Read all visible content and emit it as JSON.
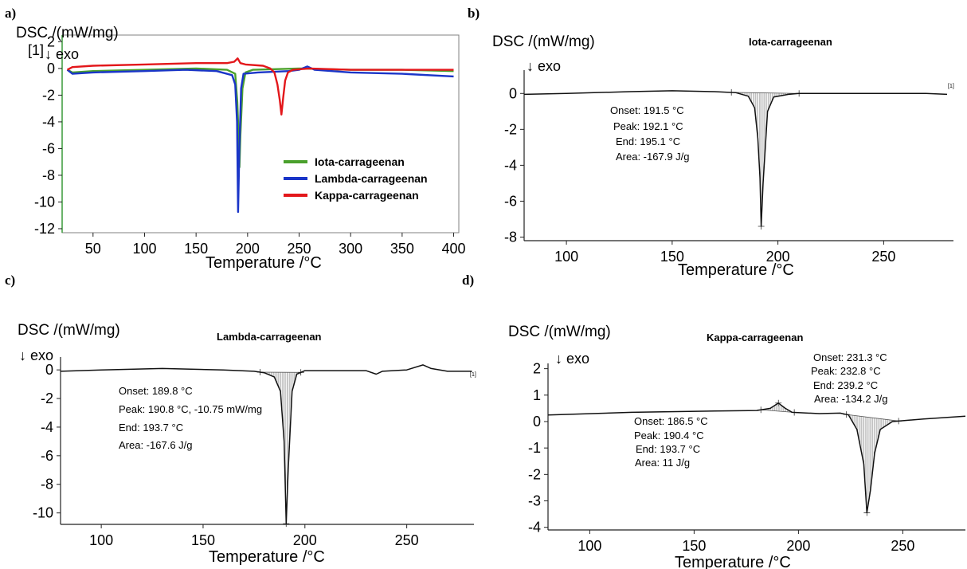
{
  "chart_data": [
    {
      "panel": "a)",
      "type": "line",
      "title": "",
      "ylabel": "DSC /(mW/mg)",
      "exo_label": "↓ exo",
      "marker_label": "[1]",
      "xlabel": "Temperature /°C",
      "xlim": [
        20,
        405
      ],
      "ylim": [
        -12.3,
        2.5
      ],
      "xticks": [
        50,
        100,
        150,
        200,
        250,
        300,
        350,
        400
      ],
      "yticks": [
        2,
        0,
        -2,
        -4,
        -6,
        -8,
        -10,
        -12
      ],
      "legend_position": "center-right",
      "series": [
        {
          "name": "Iota-carrageenan",
          "color": "#4aa02c",
          "points": [
            [
              25,
              -0.1
            ],
            [
              30,
              -0.3
            ],
            [
              50,
              -0.2
            ],
            [
              100,
              -0.1
            ],
            [
              150,
              0.0
            ],
            [
              180,
              -0.1
            ],
            [
              188,
              -0.4
            ],
            [
              190,
              -2.5
            ],
            [
              191.5,
              -5.5
            ],
            [
              192.1,
              -7.4
            ],
            [
              193,
              -5.0
            ],
            [
              195,
              -1.5
            ],
            [
              198,
              -0.3
            ],
            [
              205,
              -0.1
            ],
            [
              250,
              0.0
            ],
            [
              300,
              -0.1
            ],
            [
              350,
              -0.1
            ],
            [
              400,
              -0.2
            ]
          ]
        },
        {
          "name": "Lambda-carrageenan",
          "color": "#1a35c8",
          "points": [
            [
              25,
              -0.1
            ],
            [
              30,
              -0.4
            ],
            [
              50,
              -0.3
            ],
            [
              100,
              -0.2
            ],
            [
              140,
              -0.1
            ],
            [
              170,
              -0.2
            ],
            [
              185,
              -0.5
            ],
            [
              188,
              -1.2
            ],
            [
              189.8,
              -4.0
            ],
            [
              190.8,
              -10.75
            ],
            [
              192,
              -6.0
            ],
            [
              193.7,
              -1.5
            ],
            [
              196,
              -0.4
            ],
            [
              210,
              -0.3
            ],
            [
              240,
              -0.2
            ],
            [
              250,
              -0.1
            ],
            [
              258,
              0.15
            ],
            [
              265,
              -0.1
            ],
            [
              300,
              -0.3
            ],
            [
              350,
              -0.4
            ],
            [
              400,
              -0.6
            ]
          ]
        },
        {
          "name": "Kappa-carrageenan",
          "color": "#e3171b",
          "points": [
            [
              25,
              -0.1
            ],
            [
              30,
              0.1
            ],
            [
              50,
              0.2
            ],
            [
              100,
              0.3
            ],
            [
              150,
              0.4
            ],
            [
              180,
              0.4
            ],
            [
              187,
              0.5
            ],
            [
              190.4,
              0.75
            ],
            [
              193,
              0.4
            ],
            [
              198,
              0.3
            ],
            [
              215,
              0.2
            ],
            [
              222,
              0.0
            ],
            [
              226,
              -0.3
            ],
            [
              229,
              -1.2
            ],
            [
              231.3,
              -2.4
            ],
            [
              232.8,
              -3.45
            ],
            [
              234.5,
              -2.2
            ],
            [
              236.5,
              -0.9
            ],
            [
              239.2,
              -0.3
            ],
            [
              244,
              -0.1
            ],
            [
              260,
              0.0
            ],
            [
              300,
              -0.1
            ],
            [
              350,
              -0.1
            ],
            [
              400,
              -0.1
            ]
          ]
        }
      ]
    },
    {
      "panel": "b)",
      "type": "line",
      "title": "Iota-carrageenan",
      "ylabel": "DSC /(mW/mg)",
      "exo_label": "↓ exo",
      "marker_label": "[1]",
      "xlabel": "Temperature /°C",
      "xlim": [
        80,
        283
      ],
      "ylim": [
        -8.2,
        1.3
      ],
      "xticks": [
        100,
        150,
        200,
        250
      ],
      "yticks": [
        0,
        -2,
        -4,
        -6,
        -8
      ],
      "annotations": [
        "Onset: 191.5 °C",
        "Peak: 192.1 °C",
        "End: 195.1 °C",
        "Area: -167.9 J/g"
      ],
      "series": [
        {
          "color": "#111111",
          "points": [
            [
              80,
              -0.05
            ],
            [
              100,
              0.0
            ],
            [
              130,
              0.1
            ],
            [
              150,
              0.15
            ],
            [
              170,
              0.1
            ],
            [
              180,
              0.05
            ],
            [
              186,
              -0.15
            ],
            [
              189,
              -0.8
            ],
            [
              190.5,
              -2.5
            ],
            [
              191.5,
              -4.7
            ],
            [
              192.1,
              -7.4
            ],
            [
              193,
              -5.0
            ],
            [
              195.1,
              -1.0
            ],
            [
              198,
              -0.2
            ],
            [
              205,
              -0.05
            ],
            [
              210,
              0.0
            ],
            [
              240,
              0.0
            ],
            [
              270,
              0.0
            ],
            [
              280,
              -0.05
            ]
          ]
        }
      ]
    },
    {
      "panel": "c)",
      "type": "line",
      "title": "Lambda-carrageenan",
      "ylabel": "DSC /(mW/mg)",
      "exo_label": "↓ exo",
      "marker_label": "[1]",
      "xlabel": "Temperature /°C",
      "xlim": [
        80,
        283
      ],
      "ylim": [
        -10.8,
        0.9
      ],
      "xticks": [
        100,
        150,
        200,
        250
      ],
      "yticks": [
        0,
        -2,
        -4,
        -6,
        -8,
        -10
      ],
      "annotations": [
        "Onset: 189.8 °C",
        "Peak: 190.8 °C, -10.75 mW/mg",
        "End: 193.7 °C",
        "Area: -167.6 J/g"
      ],
      "series": [
        {
          "color": "#111111",
          "points": [
            [
              80,
              -0.1
            ],
            [
              100,
              0.0
            ],
            [
              130,
              0.1
            ],
            [
              160,
              0.0
            ],
            [
              175,
              -0.1
            ],
            [
              180,
              -0.2
            ],
            [
              185,
              -0.5
            ],
            [
              188,
              -1.5
            ],
            [
              189.8,
              -5.0
            ],
            [
              190.8,
              -10.75
            ],
            [
              191.8,
              -7.0
            ],
            [
              193.7,
              -1.5
            ],
            [
              196,
              -0.3
            ],
            [
              200,
              -0.05
            ],
            [
              230,
              -0.05
            ],
            [
              235,
              -0.3
            ],
            [
              238,
              -0.1
            ],
            [
              250,
              0.0
            ],
            [
              258,
              0.35
            ],
            [
              262,
              0.1
            ],
            [
              270,
              -0.1
            ],
            [
              282,
              -0.1
            ]
          ]
        }
      ]
    },
    {
      "panel": "d)",
      "type": "line",
      "title": "Kappa-carrageenan",
      "ylabel": "DSC /(mW/mg)",
      "exo_label": "↓ exo",
      "xlabel": "Temperature /°C",
      "xlim": [
        80,
        280
      ],
      "ylim": [
        -4.1,
        2.2
      ],
      "xticks": [
        100,
        150,
        200,
        250
      ],
      "yticks": [
        2,
        1,
        0,
        -1,
        -2,
        -3,
        -4
      ],
      "annotations": [
        "Onset: 186.5 °C",
        "Peak: 190.4 °C",
        "End: 193.7 °C",
        "Area: 11 J/g",
        "Onset: 231.3 °C",
        "Peak: 232.8 °C",
        "End: 239.2 °C",
        "Area: -134.2 J/g"
      ],
      "series": [
        {
          "color": "#111111",
          "points": [
            [
              80,
              0.25
            ],
            [
              120,
              0.35
            ],
            [
              160,
              0.4
            ],
            [
              180,
              0.42
            ],
            [
              186.5,
              0.5
            ],
            [
              190.4,
              0.7
            ],
            [
              193.7,
              0.5
            ],
            [
              197,
              0.35
            ],
            [
              210,
              0.3
            ],
            [
              220,
              0.32
            ],
            [
              224,
              0.25
            ],
            [
              228,
              -0.3
            ],
            [
              231.3,
              -1.6
            ],
            [
              232.8,
              -3.45
            ],
            [
              234.5,
              -2.6
            ],
            [
              236.5,
              -1.2
            ],
            [
              239.2,
              -0.3
            ],
            [
              245,
              0.0
            ],
            [
              260,
              0.1
            ],
            [
              280,
              0.2
            ]
          ]
        }
      ]
    }
  ]
}
